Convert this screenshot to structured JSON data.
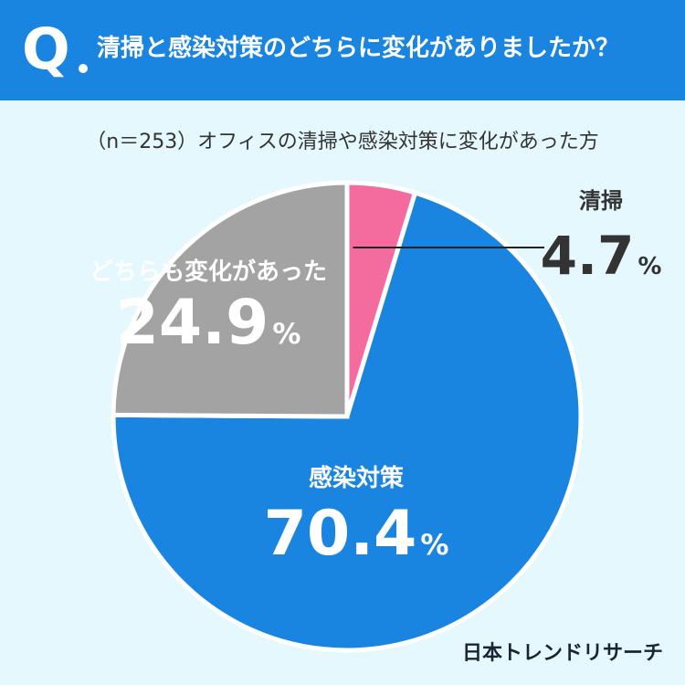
{
  "header": {
    "q_label": "Q",
    "question": "清掃と感染対策のどちらに変化がありましたか？"
  },
  "subtitle": "（n＝253）オフィスの清掃や感染対策に変化があった方",
  "chart_data": {
    "type": "pie",
    "categories": [
      "清掃",
      "感染対策",
      "どちらも変化があった"
    ],
    "values": [
      4.7,
      70.4,
      24.9
    ],
    "value_labels": [
      "4.7",
      "70.4",
      "24.9"
    ],
    "unit": "%",
    "colors": [
      "#f46b9e",
      "#1a85e0",
      "#a3a3a3"
    ],
    "start_angle_deg": 0,
    "direction": "clockwise"
  },
  "footer": {
    "logo": "日本トレンドリサーチ"
  }
}
